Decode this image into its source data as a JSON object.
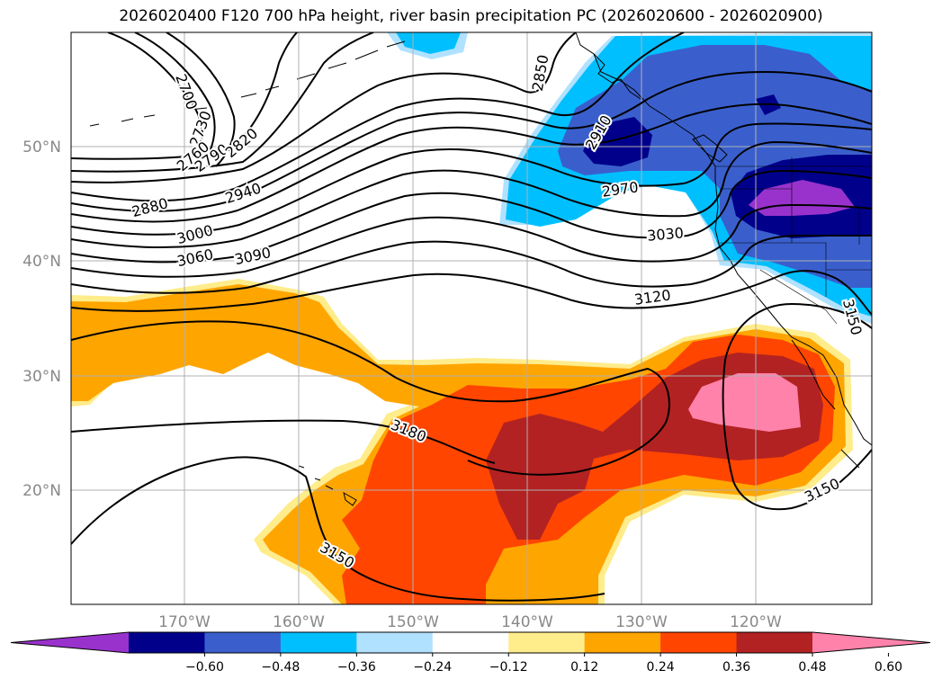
{
  "title": "2026020400 F120 700 hPa height, river basin precipitation PC (2026020600 - 2026020900)",
  "lat_labels": [
    "50°N",
    "40°N",
    "30°N",
    "20°N"
  ],
  "lon_labels": [
    "170°W",
    "160°W",
    "150°W",
    "140°W",
    "130°W",
    "120°W"
  ],
  "contour_labels": {
    "c2700": "2700",
    "c2730": "2730",
    "c2760": "2760",
    "c2790": "2790",
    "c2820": "2820",
    "c2850": "2850",
    "c2880": "2880",
    "c2910": "2910",
    "c2940": "2940",
    "c2970": "2970",
    "c3000": "3000",
    "c3030": "3030",
    "c3060": "3060",
    "c3090": "3090",
    "c3120": "3120",
    "c3150a": "3150",
    "c3150b": "3150",
    "c3150c": "3150",
    "c3180": "3180"
  },
  "colorbar": {
    "ticks": [
      "−0.60",
      "−0.48",
      "−0.36",
      "−0.24",
      "−0.12",
      "0.12",
      "0.24",
      "0.36",
      "0.48",
      "0.60"
    ],
    "colors": [
      "#9932cc",
      "#00008b",
      "#3a5fcd",
      "#00bfff",
      "#b0e2ff",
      "#ffffff",
      "#ffec8b",
      "#ffa500",
      "#ff4500",
      "#b22222",
      "#ff82ab"
    ]
  }
}
